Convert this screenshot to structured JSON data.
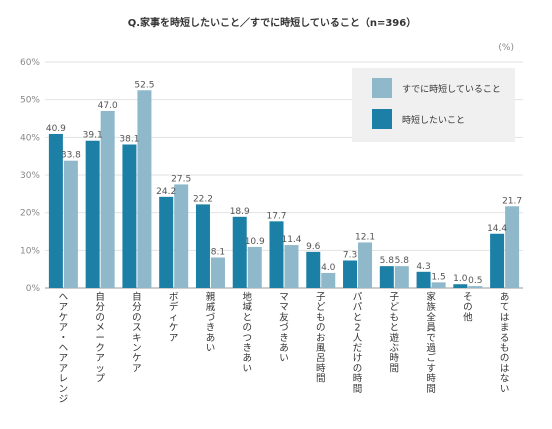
{
  "chart_data": {
    "type": "bar",
    "title": "Q.家事を時短したいこと／すでに時短していること（n=396）",
    "unit_label": "(%)",
    "ylim": [
      0,
      60
    ],
    "yticks": [
      "0%",
      "10%",
      "20%",
      "30%",
      "40%",
      "50%",
      "60%"
    ],
    "grid": true,
    "legend_position": "top-right",
    "categories": [
      "ヘアケア・ヘアアレンジ",
      "自分のメークアップ",
      "自分のスキンケア",
      "ボディケア",
      "親戚づきあい",
      "地域とのつきあい",
      "ママ友づきあい",
      "子どものお風呂時間",
      "パパと2人だけの時間",
      "子どもと遊ぶ時間",
      "家族全員で過ごす時間",
      "その他",
      "あてはまるものはない"
    ],
    "series": [
      {
        "name": "時短したいこと",
        "color": "#1b7fa6",
        "values": [
          40.9,
          39.1,
          38.1,
          24.2,
          22.2,
          18.9,
          17.7,
          9.6,
          7.3,
          5.8,
          4.3,
          1.0,
          14.4
        ],
        "labels": [
          "40.9",
          "39.1",
          "38.1",
          "24.2",
          "22.2",
          "18.9",
          "17.7",
          "9.6",
          "7.3",
          "5.8",
          "4.3",
          "1.0",
          "14.4"
        ]
      },
      {
        "name": "すでに時短していること",
        "color": "#8fb8cb",
        "values": [
          33.8,
          47.0,
          52.5,
          27.5,
          8.1,
          10.9,
          11.4,
          4.0,
          12.1,
          5.8,
          1.5,
          0.5,
          21.7
        ],
        "labels": [
          "33.8",
          "47.0",
          "52.5",
          "27.5",
          "8.1",
          "10.9",
          "11.4",
          "4.0",
          "12.1",
          "5.8",
          "1.5",
          "0.5",
          "21.7"
        ]
      }
    ],
    "legend_order": [
      "すでに時短していること",
      "時短したいこと"
    ]
  }
}
